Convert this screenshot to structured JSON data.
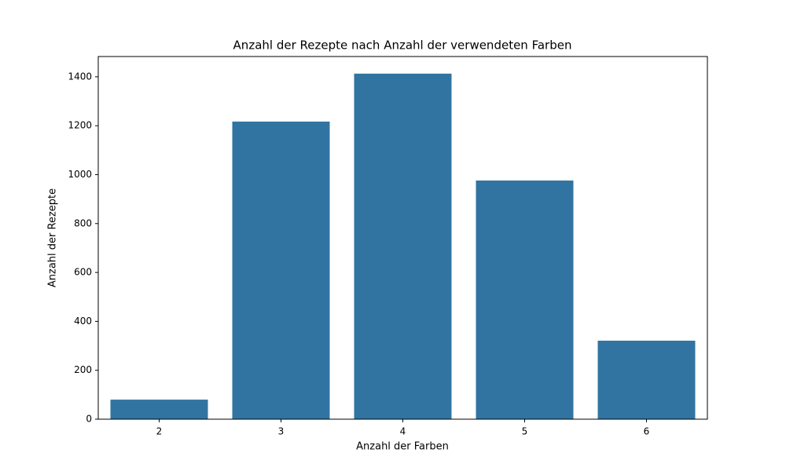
{
  "chart_data": {
    "type": "bar",
    "title": "Anzahl der Rezepte nach Anzahl der verwendeten Farben",
    "x_label": "Anzahl der Farben",
    "y_label": "Anzahl der Rezepte",
    "categories": [
      "2",
      "3",
      "4",
      "5",
      "6"
    ],
    "values": [
      80,
      1217,
      1413,
      976,
      321
    ],
    "color": "#3274a1",
    "ylim": [
      0,
      1483
    ],
    "yticks": [
      0,
      200,
      400,
      600,
      800,
      1000,
      1200,
      1400
    ]
  }
}
